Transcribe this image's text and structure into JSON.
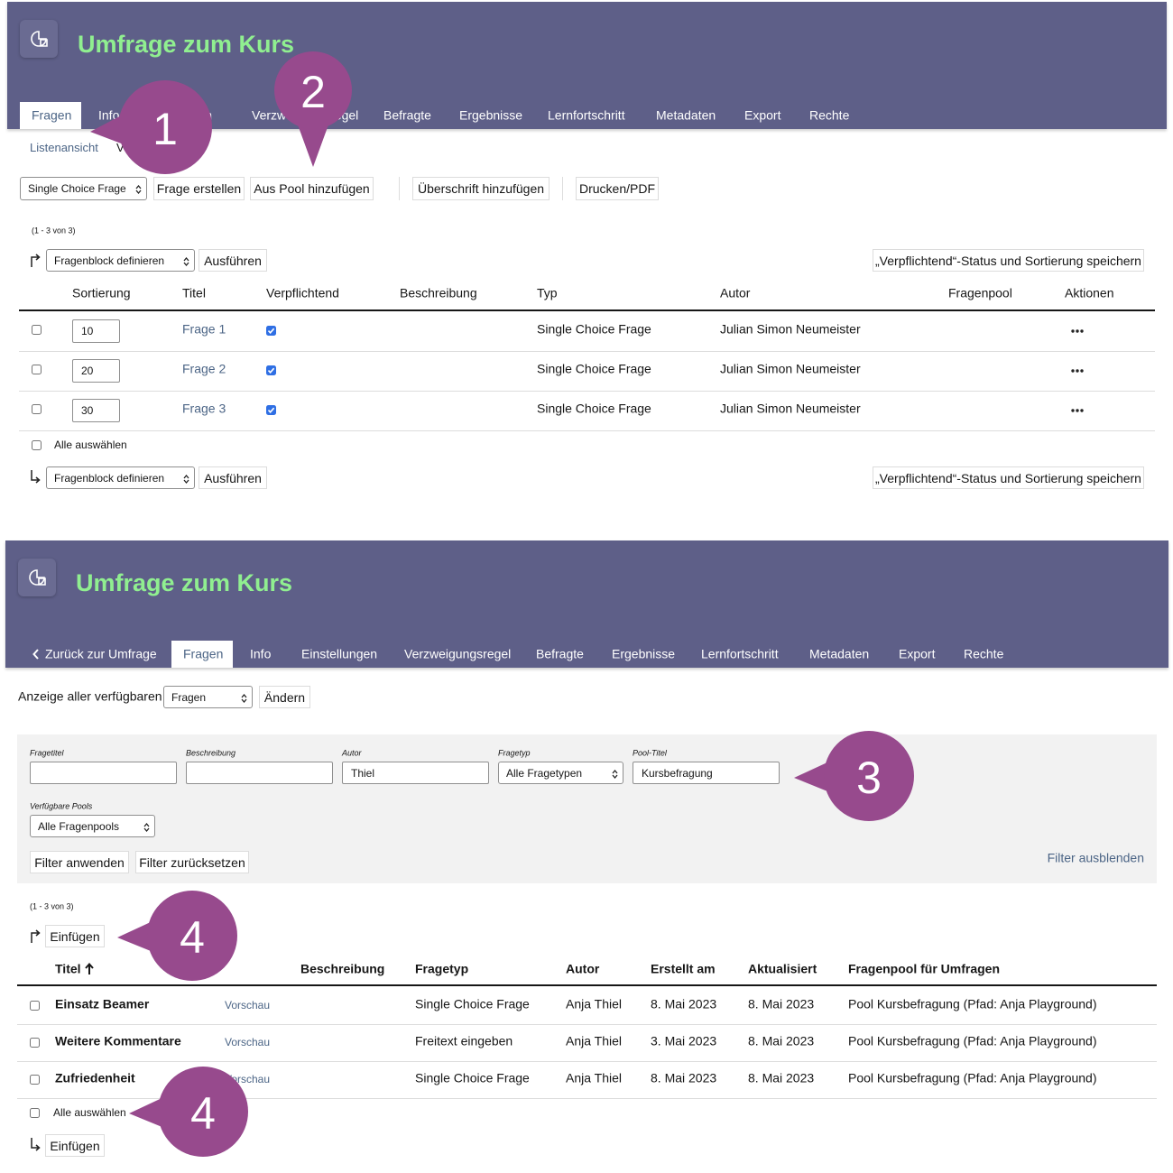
{
  "screen1": {
    "title": "Umfrage zum Kurs",
    "tabs": [
      "Fragen",
      "Info",
      "Einstellungen",
      "Verzweigungsregel",
      "Befragte",
      "Ergebnisse",
      "Lernfortschritt",
      "Metadaten",
      "Export",
      "Rechte"
    ],
    "subtabs": [
      "Listenansicht",
      "Vorschau"
    ],
    "type_select": "Single Choice Frage",
    "toolbar_buttons": [
      "Frage erstellen",
      "Aus Pool hinzufügen",
      "Überschrift hinzufügen",
      "Drucken/PDF"
    ],
    "range": "(1 - 3 von 3)",
    "action_select": "Fragenblock definieren",
    "action_button": "Ausführen",
    "save_button": "„Verpflichtend“-Status und Sortierung speichern",
    "columns": [
      "Sortierung",
      "Titel",
      "Verpflichtend",
      "Beschreibung",
      "Typ",
      "Autor",
      "Fragenpool",
      "Aktionen"
    ],
    "rows": [
      {
        "sort": 10,
        "title": "Frage 1",
        "mandatory": true,
        "type": "Single Choice Frage",
        "author": "Julian Simon Neumeister"
      },
      {
        "sort": 20,
        "title": "Frage 2",
        "mandatory": true,
        "type": "Single Choice Frage",
        "author": "Julian Simon Neumeister"
      },
      {
        "sort": 30,
        "title": "Frage 3",
        "mandatory": true,
        "type": "Single Choice Frage",
        "author": "Julian Simon Neumeister"
      }
    ],
    "select_all": "Alle auswählen"
  },
  "screen2": {
    "title": "Umfrage zum Kurs",
    "back_tab": "Zurück zur Umfrage",
    "tabs": [
      "Fragen",
      "Info",
      "Einstellungen",
      "Verzweigungsregel",
      "Befragte",
      "Ergebnisse",
      "Lernfortschritt",
      "Metadaten",
      "Export",
      "Rechte"
    ],
    "display_label": "Anzeige aller verfügbaren",
    "display_select": "Fragen",
    "change_button": "Ändern",
    "filters": [
      {
        "label": "Fragetitel"
      },
      {
        "label": "Beschreibung"
      },
      {
        "label": "Autor",
        "value": "Thiel"
      },
      {
        "label": "Fragetyp",
        "value": "Alle Fragetypen"
      },
      {
        "label": "Pool-Titel",
        "value": "Kursbefragung"
      },
      {
        "label": "Verfügbare Pools",
        "value": "Alle Fragenpools"
      }
    ],
    "filter_buttons": [
      "Filter anwenden",
      "Filter zurücksetzen"
    ],
    "hide_filter": "Filter ausblenden",
    "range": "(1 - 3 von 3)",
    "insert_button": "Einfügen",
    "columns": [
      "Titel",
      "Beschreibung",
      "Fragetyp",
      "Autor",
      "Erstellt am",
      "Aktualisiert",
      "Fragenpool für Umfragen"
    ],
    "rows": [
      {
        "title": "Einsatz Beamer",
        "preview": "Vorschau",
        "type": "Single Choice Frage",
        "author": "Anja Thiel",
        "created": "8. Mai 2023",
        "updated": "8. Mai 2023",
        "pool": "Pool Kursbefragung (Pfad: Anja Playground)"
      },
      {
        "title": "Weitere Kommentare",
        "preview": "Vorschau",
        "type": "Freitext eingeben",
        "author": "Anja Thiel",
        "created": "3. Mai 2023",
        "updated": "8. Mai 2023",
        "pool": "Pool Kursbefragung (Pfad: Anja Playground)"
      },
      {
        "title": "Zufriedenheit",
        "preview": "Vorschau",
        "type": "Single Choice Frage",
        "author": "Anja Thiel",
        "created": "8. Mai 2023",
        "updated": "8. Mai 2023",
        "pool": "Pool Kursbefragung (Pfad: Anja Playground)"
      }
    ],
    "select_all": "Alle auswählen"
  },
  "callouts": [
    "1",
    "2",
    "3",
    "4",
    "4"
  ]
}
